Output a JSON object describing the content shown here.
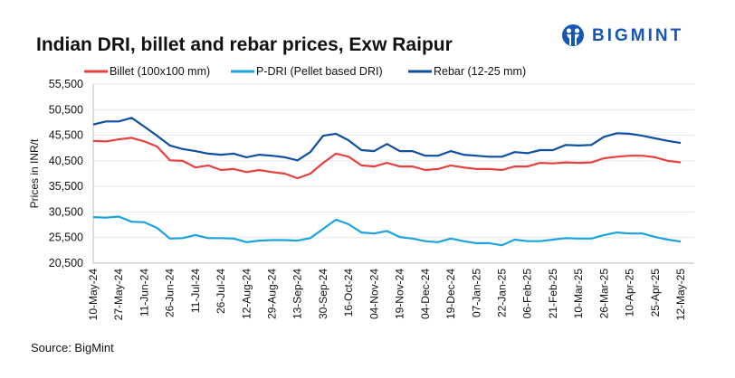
{
  "title": "Indian DRI, billet and rebar prices, Exw  Raipur",
  "logo": {
    "text": "BIGMINT"
  },
  "source": "Source: BigMint",
  "colors": {
    "billet": "#e8403f",
    "pdri": "#1aa3de",
    "rebar": "#0f4fa0",
    "grid": "#e6e6e6",
    "brand": "#1657b4"
  },
  "chart_data": {
    "type": "line",
    "title": "Indian DRI, billet and rebar prices, Exw  Raipur",
    "ylabel": "Prices in INR/t",
    "xlabel": "",
    "ylim": [
      20500,
      55500
    ],
    "yticks": [
      "55,500",
      "50,500",
      "45,500",
      "40,500",
      "35,500",
      "30,500",
      "25,500",
      "20,500"
    ],
    "ytick_values": [
      55500,
      50500,
      45500,
      40500,
      35500,
      30500,
      25500,
      20500
    ],
    "xtick_labels": [
      "10-May-24",
      "27-May-24",
      "11-Jun-24",
      "26-Jun-24",
      "11-Jul-24",
      "26-Jul-24",
      "12-Aug-24",
      "29-Aug-24",
      "13-Sep-24",
      "30-Sep-24",
      "16-Oct-24",
      "04-Nov-24",
      "19-Nov-24",
      "04-Dec-24",
      "19-Dec-24",
      "07-Jan-25",
      "22-Jan-25",
      "06-Feb-25",
      "21-Feb-25",
      "10-Mar-25",
      "26-Mar-25",
      "10-Apr-25",
      "25-Apr-25",
      "12-May-25"
    ],
    "x": [
      "10-May-24",
      "18-May-24",
      "27-May-24",
      "04-Jun-24",
      "11-Jun-24",
      "18-Jun-24",
      "26-Jun-24",
      "03-Jul-24",
      "11-Jul-24",
      "18-Jul-24",
      "26-Jul-24",
      "03-Aug-24",
      "12-Aug-24",
      "20-Aug-24",
      "29-Aug-24",
      "05-Sep-24",
      "13-Sep-24",
      "21-Sep-24",
      "30-Sep-24",
      "08-Oct-24",
      "16-Oct-24",
      "25-Oct-24",
      "04-Nov-24",
      "11-Nov-24",
      "19-Nov-24",
      "26-Nov-24",
      "04-Dec-24",
      "11-Dec-24",
      "19-Dec-24",
      "29-Dec-24",
      "07-Jan-25",
      "14-Jan-25",
      "22-Jan-25",
      "29-Jan-25",
      "06-Feb-25",
      "13-Feb-25",
      "21-Feb-25",
      "01-Mar-25",
      "10-Mar-25",
      "18-Mar-25",
      "26-Mar-25",
      "02-Apr-25",
      "10-Apr-25",
      "17-Apr-25",
      "25-Apr-25",
      "03-May-25",
      "12-May-25"
    ],
    "grid": true,
    "legend": "top",
    "series": [
      {
        "name": "Billet (100x100 mm)",
        "color": "#e8403f",
        "values": [
          44400,
          44300,
          44700,
          45000,
          44300,
          43300,
          40600,
          40500,
          39200,
          39600,
          38700,
          38900,
          38300,
          38700,
          38300,
          38000,
          37100,
          38000,
          40100,
          41900,
          41300,
          39600,
          39400,
          40100,
          39400,
          39400,
          38700,
          38900,
          39600,
          39200,
          38900,
          38900,
          38700,
          39400,
          39400,
          40100,
          40000,
          40200,
          40100,
          40200,
          41000,
          41300,
          41500,
          41500,
          41200,
          40500,
          40200
        ]
      },
      {
        "name": "P-DRI (Pellet based DRI)",
        "color": "#1aa3de",
        "values": [
          29500,
          29400,
          29600,
          28600,
          28500,
          27400,
          25300,
          25400,
          26000,
          25400,
          25400,
          25300,
          24600,
          24900,
          25000,
          25000,
          24900,
          25400,
          27200,
          29000,
          28100,
          26500,
          26300,
          26800,
          25600,
          25300,
          24800,
          24600,
          25300,
          24800,
          24400,
          24400,
          24000,
          25100,
          24800,
          24800,
          25100,
          25400,
          25300,
          25300,
          26000,
          26500,
          26300,
          26300,
          25600,
          25100,
          24700
        ]
      },
      {
        "name": "Rebar (12-25 mm)",
        "color": "#0f4fa0",
        "values": [
          47600,
          48200,
          48200,
          48900,
          47200,
          45400,
          43500,
          42800,
          42400,
          41900,
          41700,
          41900,
          41200,
          41700,
          41500,
          41200,
          40600,
          42200,
          45400,
          45800,
          44500,
          42600,
          42400,
          43800,
          42400,
          42400,
          41500,
          41500,
          42400,
          41700,
          41500,
          41300,
          41300,
          42200,
          42000,
          42600,
          42600,
          43600,
          43500,
          43600,
          45200,
          45900,
          45800,
          45400,
          44900,
          44400,
          44000
        ]
      }
    ]
  }
}
